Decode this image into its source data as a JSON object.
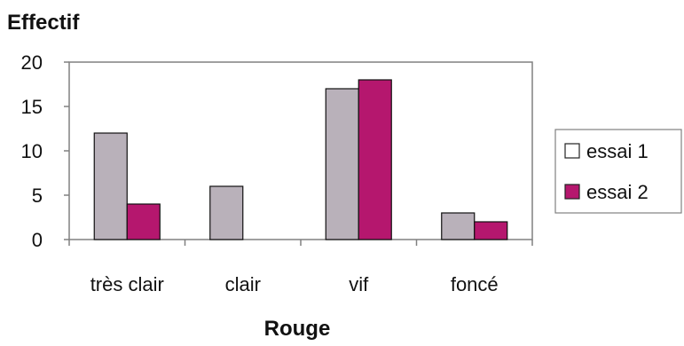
{
  "chart_data": {
    "type": "bar",
    "ylabel": "Effectif",
    "xlabel": "Rouge",
    "categories": [
      "très clair",
      "clair",
      "vif",
      "foncé"
    ],
    "ylim": [
      0,
      20
    ],
    "yticks": [
      0,
      5,
      10,
      15,
      20
    ],
    "grid": false,
    "legend_position": "right",
    "series": [
      {
        "name": "essai 1",
        "values": [
          12,
          6,
          17,
          3
        ],
        "color": "#b9b1ba"
      },
      {
        "name": "essai 2",
        "values": [
          4,
          0,
          18,
          2
        ],
        "color": "#b5176e"
      }
    ]
  }
}
